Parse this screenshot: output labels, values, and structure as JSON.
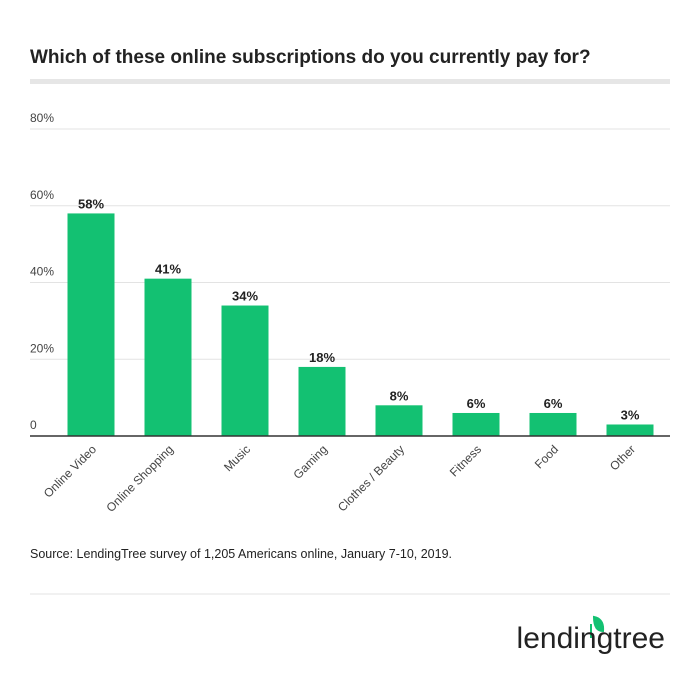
{
  "chart_data": {
    "type": "bar",
    "title": "Which of these online subscriptions do you currently pay for?",
    "categories": [
      "Online Video",
      "Online Shopping",
      "Music",
      "Gaming",
      "Clothes / Beauty",
      "Fitness",
      "Food",
      "Other"
    ],
    "values": [
      58,
      41,
      34,
      18,
      8,
      6,
      6,
      3
    ],
    "value_labels": [
      "58%",
      "41%",
      "34%",
      "18%",
      "8%",
      "6%",
      "6%",
      "3%"
    ],
    "color": "#13c172",
    "ylim": [
      0,
      80
    ],
    "yticks": [
      0,
      {
        "value": 20,
        "label": "20%"
      },
      {
        "value": 40,
        "label": "40%"
      },
      {
        "value": 60,
        "label": "60%"
      },
      {
        "value": 80,
        "label": "80%"
      }
    ],
    "grid": true
  },
  "source": "Source: LendingTree survey of 1,205 Americans online, January 7-10, 2019.",
  "logo": "lendingtree"
}
